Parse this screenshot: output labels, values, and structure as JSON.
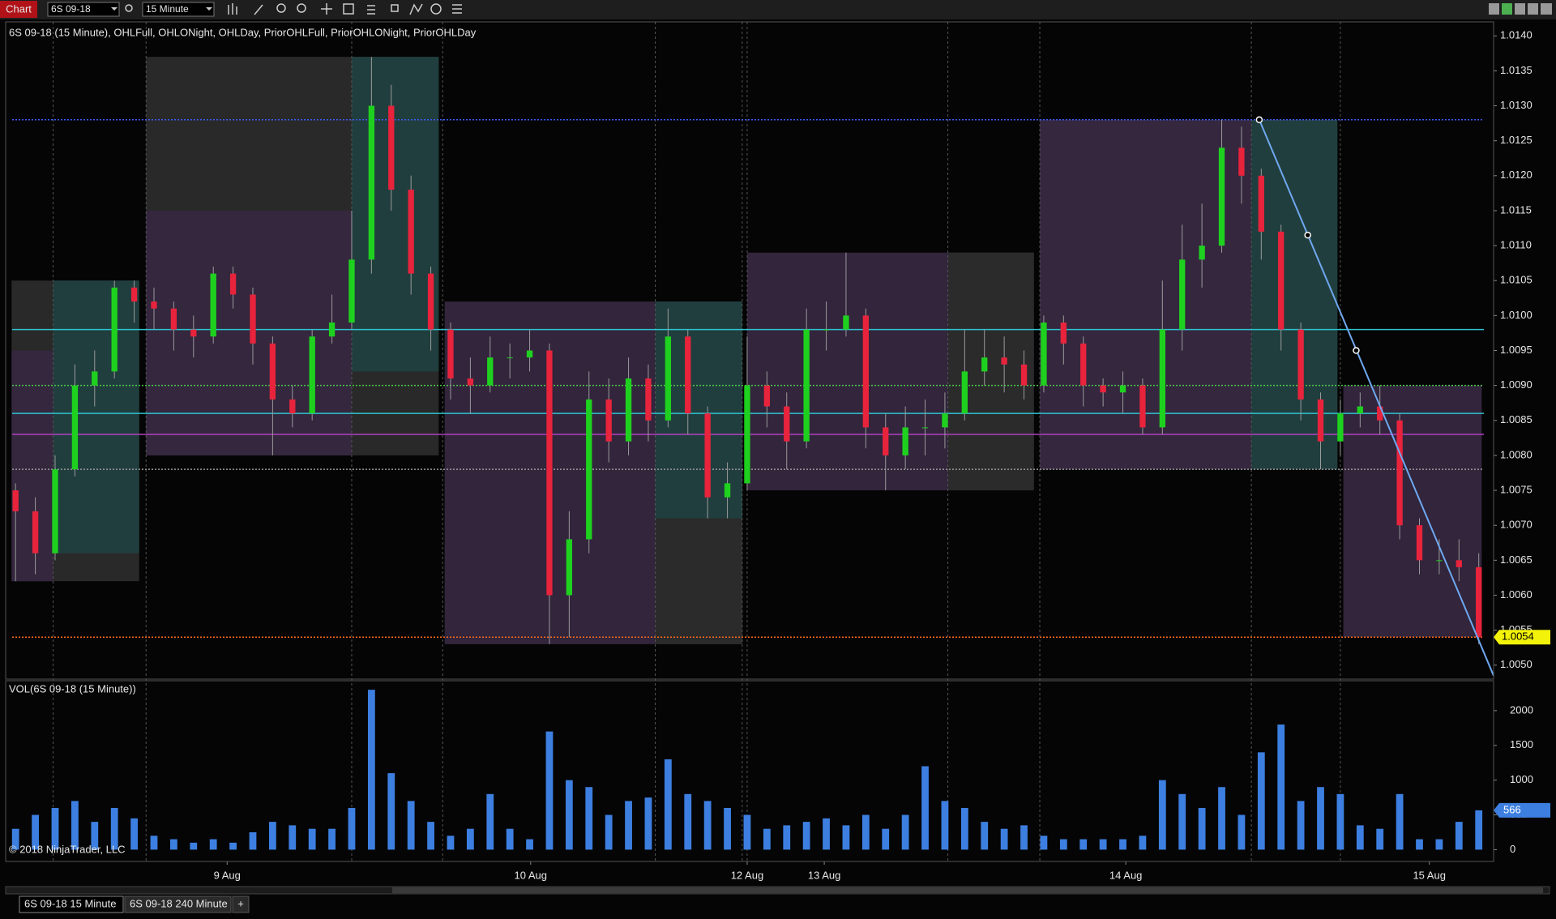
{
  "ui": {
    "window_label": "Chart",
    "instrument": "6S 09-18",
    "interval": "15 Minute",
    "copyright": "© 2018 NinjaTrader, LLC",
    "tabs": [
      "6S 09-18 15 Minute",
      "6S 09-18 240 Minute",
      "+"
    ]
  },
  "chart_data": [
    {
      "type": "candlestick",
      "title": "6S 09-18 (15 Minute), OHLFull, OHLONight, OHLDay, PriorOHLFull, PriorOHLONight, PriorOHLDay",
      "up_color": "#1fd11f",
      "down_color": "#e8233c",
      "xlim": [
        -0.5,
        74.75
      ],
      "xticks": [
        {
          "value": 10.7,
          "label": "9 Aug"
        },
        {
          "value": 26.05,
          "label": "10 Aug"
        },
        {
          "value": 37,
          "label": "12 Aug"
        },
        {
          "value": 40.9,
          "label": "13 Aug"
        },
        {
          "value": 56.15,
          "label": "14 Aug"
        },
        {
          "value": 71.5,
          "label": "15 Aug"
        }
      ],
      "ylim": [
        1.0048,
        1.0142
      ],
      "yticks": [
        {
          "value": 1.005,
          "label": "1.0050"
        },
        1.0055,
        {
          "value": 1.006,
          "label": "1.0060"
        },
        1.0065,
        {
          "value": 1.007,
          "label": "1.0070"
        },
        1.0075,
        {
          "value": 1.008,
          "label": "1.0080"
        },
        1.0085,
        {
          "value": 1.009,
          "label": "1.0090"
        },
        1.0095,
        {
          "value": 1.01,
          "label": "1.0100"
        },
        1.0105,
        {
          "value": 1.011,
          "label": "1.0110"
        },
        1.0115,
        {
          "value": 1.012,
          "label": "1.0120"
        },
        1.0125,
        {
          "value": 1.013,
          "label": "1.0130"
        },
        1.0135,
        {
          "value": 1.014,
          "label": "1.0140"
        }
      ],
      "ohlc": [
        [
          1.0075,
          1.0076,
          1.0062,
          1.0072
        ],
        [
          1.0072,
          1.0074,
          1.0063,
          1.0066
        ],
        [
          1.0066,
          1.008,
          1.0065,
          1.0078
        ],
        [
          1.0078,
          1.0093,
          1.0077,
          1.009
        ],
        [
          1.009,
          1.0095,
          1.0087,
          1.0092
        ],
        [
          1.0092,
          1.0105,
          1.0091,
          1.0104
        ],
        [
          1.0104,
          1.0105,
          1.0099,
          1.0102
        ],
        [
          1.0102,
          1.0104,
          1.0098,
          1.0101
        ],
        [
          1.0101,
          1.0102,
          1.0095,
          1.0098
        ],
        [
          1.0098,
          1.01,
          1.0094,
          1.0097
        ],
        [
          1.0097,
          1.0107,
          1.0096,
          1.0106
        ],
        [
          1.0106,
          1.0107,
          1.0101,
          1.0103
        ],
        [
          1.0103,
          1.0104,
          1.0093,
          1.0096
        ],
        [
          1.0096,
          1.0097,
          1.008,
          1.0088
        ],
        [
          1.0088,
          1.009,
          1.0084,
          1.0086
        ],
        [
          1.0086,
          1.0098,
          1.0085,
          1.0097
        ],
        [
          1.0097,
          1.0103,
          1.0096,
          1.0099
        ],
        [
          1.0099,
          1.0115,
          1.0098,
          1.0108
        ],
        [
          1.0108,
          1.0137,
          1.0106,
          1.013
        ],
        [
          1.013,
          1.0133,
          1.0115,
          1.0118
        ],
        [
          1.0118,
          1.012,
          1.0103,
          1.0106
        ],
        [
          1.0106,
          1.0107,
          1.0095,
          1.0098
        ],
        [
          1.0098,
          1.0099,
          1.0088,
          1.0091
        ],
        [
          1.0091,
          1.0094,
          1.0086,
          1.009
        ],
        [
          1.009,
          1.0097,
          1.0089,
          1.0094
        ],
        [
          1.0094,
          1.0096,
          1.0091,
          1.0094
        ],
        [
          1.0094,
          1.0098,
          1.0092,
          1.0095
        ],
        [
          1.0095,
          1.0096,
          1.0053,
          1.006
        ],
        [
          1.006,
          1.0072,
          1.0054,
          1.0068
        ],
        [
          1.0068,
          1.0092,
          1.0066,
          1.0088
        ],
        [
          1.0088,
          1.0091,
          1.0079,
          1.0082
        ],
        [
          1.0082,
          1.0094,
          1.008,
          1.0091
        ],
        [
          1.0091,
          1.0093,
          1.0082,
          1.0085
        ],
        [
          1.0085,
          1.0101,
          1.0084,
          1.0097
        ],
        [
          1.0097,
          1.0098,
          1.0083,
          1.0086
        ],
        [
          1.0086,
          1.0087,
          1.0071,
          1.0074
        ],
        [
          1.0074,
          1.0079,
          1.0071,
          1.0076
        ],
        [
          1.0076,
          1.0097,
          1.0075,
          1.009
        ],
        [
          1.009,
          1.0092,
          1.0084,
          1.0087
        ],
        [
          1.0087,
          1.0089,
          1.0078,
          1.0082
        ],
        [
          1.0082,
          1.0101,
          1.0081,
          1.0098
        ],
        [
          1.0098,
          1.0102,
          1.0095,
          1.0098
        ],
        [
          1.0098,
          1.0109,
          1.0097,
          1.01
        ],
        [
          1.01,
          1.0101,
          1.0081,
          1.0084
        ],
        [
          1.0084,
          1.0086,
          1.0075,
          1.008
        ],
        [
          1.008,
          1.0087,
          1.0078,
          1.0084
        ],
        [
          1.0084,
          1.0088,
          1.008,
          1.0084
        ],
        [
          1.0084,
          1.0089,
          1.0081,
          1.0086
        ],
        [
          1.0086,
          1.0098,
          1.0085,
          1.0092
        ],
        [
          1.0092,
          1.0098,
          1.009,
          1.0094
        ],
        [
          1.0094,
          1.0097,
          1.0089,
          1.0093
        ],
        [
          1.0093,
          1.0095,
          1.0088,
          1.009
        ],
        [
          1.009,
          1.01,
          1.0089,
          1.0099
        ],
        [
          1.0099,
          1.01,
          1.0093,
          1.0096
        ],
        [
          1.0096,
          1.0097,
          1.0087,
          1.009
        ],
        [
          1.009,
          1.0091,
          1.0087,
          1.0089
        ],
        [
          1.0089,
          1.0092,
          1.0086,
          1.009
        ],
        [
          1.009,
          1.0091,
          1.0083,
          1.0084
        ],
        [
          1.0084,
          1.0105,
          1.0083,
          1.0098
        ],
        [
          1.0098,
          1.0113,
          1.0095,
          1.0108
        ],
        [
          1.0108,
          1.0116,
          1.0104,
          1.011
        ],
        [
          1.011,
          1.0128,
          1.0109,
          1.0124
        ],
        [
          1.0124,
          1.0127,
          1.0116,
          1.012
        ],
        [
          1.012,
          1.0121,
          1.0108,
          1.0112
        ],
        [
          1.0112,
          1.0113,
          1.0095,
          1.0098
        ],
        [
          1.0098,
          1.0099,
          1.0085,
          1.0088
        ],
        [
          1.0088,
          1.0089,
          1.0078,
          1.0082
        ],
        [
          1.0082,
          1.0088,
          1.008,
          1.0086
        ],
        [
          1.0086,
          1.0089,
          1.0084,
          1.0087
        ],
        [
          1.0087,
          1.009,
          1.0083,
          1.0085
        ],
        [
          1.0085,
          1.0086,
          1.0068,
          1.007
        ],
        [
          1.007,
          1.0071,
          1.0063,
          1.0065
        ],
        [
          1.0065,
          1.0068,
          1.0063,
          1.0065
        ],
        [
          1.0065,
          1.0068,
          1.0062,
          1.0064
        ],
        [
          1.0064,
          1.0066,
          1.0053,
          1.0054
        ]
      ],
      "ranges": [
        {
          "x": [
            -0.2,
            6.25
          ],
          "y": [
            1.0105,
            1.0062
          ],
          "color": "#2b2b2b"
        },
        {
          "x": [
            -0.2,
            1.9
          ],
          "y": [
            1.0095,
            1.0062
          ],
          "color": "#35273f"
        },
        {
          "x": [
            1.9,
            6.25
          ],
          "y": [
            1.0105,
            1.0066
          ],
          "color": "#213f3f"
        },
        {
          "x": [
            6.6,
            21.4
          ],
          "y": [
            1.0137,
            1.008
          ],
          "color": "#2b2b2b"
        },
        {
          "x": [
            6.6,
            17
          ],
          "y": [
            1.0115,
            1.008
          ],
          "color": "#35273f"
        },
        {
          "x": [
            17,
            21.4
          ],
          "y": [
            1.0137,
            1.0092
          ],
          "color": "#213f3f"
        },
        {
          "x": [
            21.7,
            36.75
          ],
          "y": [
            1.0102,
            1.0053
          ],
          "color": "#35273f"
        },
        {
          "x": [
            32.35,
            36.75
          ],
          "y": [
            1.0102,
            1.0053
          ],
          "color": "#2b2b2b"
        },
        {
          "x": [
            32.35,
            36.75
          ],
          "y": [
            1.0102,
            1.0071
          ],
          "color": "#213f3f"
        },
        {
          "x": [
            37,
            51.5
          ],
          "y": [
            1.0109,
            1.0075
          ],
          "color": "#35273f"
        },
        {
          "x": [
            47.15,
            51.5
          ],
          "y": [
            1.0109,
            1.0075
          ],
          "color": "#2b2b2b"
        },
        {
          "x": [
            51.8,
            66.85
          ],
          "y": [
            1.0128,
            1.0078
          ],
          "color": "#2b2b2b"
        },
        {
          "x": [
            51.8,
            62.5
          ],
          "y": [
            1.0128,
            1.0078
          ],
          "color": "#35273f"
        },
        {
          "x": [
            62.5,
            66.85
          ],
          "y": [
            1.0128,
            1.0078
          ],
          "color": "#213f3f"
        },
        {
          "x": [
            67.15,
            74.15
          ],
          "y": [
            1.009,
            1.0054
          ],
          "color": "#35273f"
        }
      ],
      "session_breaks": [
        1.9,
        6.6,
        17,
        21.6,
        32.35,
        36.75,
        37,
        47.15,
        51.8,
        62.5,
        67
      ],
      "levels": [
        {
          "value": 1.0128,
          "color": "#3b5bff",
          "style": "dotted"
        },
        {
          "value": 1.0098,
          "color": "#2ec4d0",
          "style": "solid"
        },
        {
          "value": 1.009,
          "color": "#4cc64c",
          "style": "dotted"
        },
        {
          "value": 1.0086,
          "color": "#2ec4d0",
          "style": "solid"
        },
        {
          "value": 1.0083,
          "color": "#b040c0",
          "style": "solid"
        },
        {
          "value": 1.0078,
          "color": "#9a9a9a",
          "style": "dotted"
        },
        {
          "value": 1.0054,
          "color": "#ff6a1a",
          "style": "dotted"
        }
      ],
      "trend_line": {
        "x": [
          62.9,
          74.75
        ],
        "y": [
          1.0128,
          1.00485
        ],
        "color": "#6fa8f0"
      },
      "anchors": {
        "x": [
          62.9,
          65.35,
          67.8
        ],
        "y": [
          1.0128,
          1.01115,
          1.0095
        ]
      },
      "marker_color": "#f2f20a"
    },
    {
      "type": "bar",
      "title": "VOL(6S 09-18 (15 Minute))",
      "color": "#3d7fe0",
      "xlim": [
        -0.5,
        74.75
      ],
      "ylim": [
        -170,
        2430
      ],
      "yticks": [
        0,
        500,
        1000,
        1500,
        2000
      ],
      "values": [
        300,
        500,
        600,
        700,
        400,
        600,
        450,
        200,
        150,
        100,
        150,
        100,
        250,
        400,
        350,
        300,
        300,
        600,
        2300,
        1100,
        700,
        400,
        200,
        300,
        800,
        300,
        150,
        1700,
        1000,
        900,
        500,
        700,
        750,
        1300,
        800,
        700,
        600,
        500,
        300,
        350,
        400,
        450,
        350,
        500,
        300,
        500,
        1200,
        700,
        600,
        400,
        300,
        350,
        200,
        150,
        150,
        150,
        150,
        200,
        1000,
        800,
        600,
        900,
        500,
        1400,
        1800,
        700,
        900,
        800,
        350,
        300,
        800,
        150,
        150,
        400,
        566
      ]
    }
  ]
}
